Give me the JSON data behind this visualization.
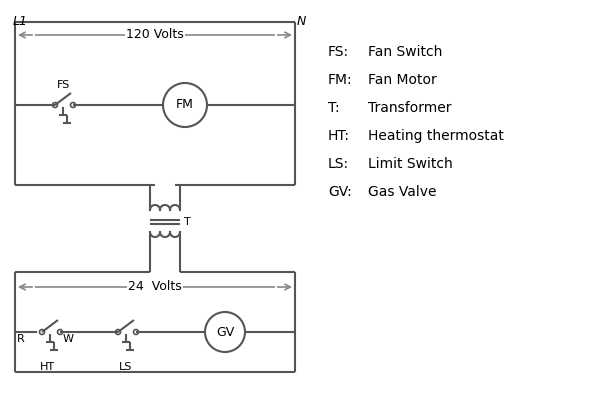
{
  "background_color": "#ffffff",
  "line_color": "#555555",
  "arrow_color": "#888888",
  "text_color": "#000000",
  "legend_items": [
    [
      "FS:",
      "Fan Switch"
    ],
    [
      "FM:",
      "Fan Motor"
    ],
    [
      "T:",
      "Transformer"
    ],
    [
      "HT:",
      "Heating thermostat"
    ],
    [
      "LS:",
      "Limit Switch"
    ],
    [
      "GV:",
      "Gas Valve"
    ]
  ],
  "label_L1": "L1",
  "label_N": "N",
  "label_120V": "120 Volts",
  "label_24V": "24  Volts",
  "label_T": "T",
  "label_R": "R",
  "label_W": "W",
  "label_HT": "HT",
  "label_LS": "LS",
  "label_FS": "FS",
  "label_FM": "FM",
  "label_GV": "GV"
}
